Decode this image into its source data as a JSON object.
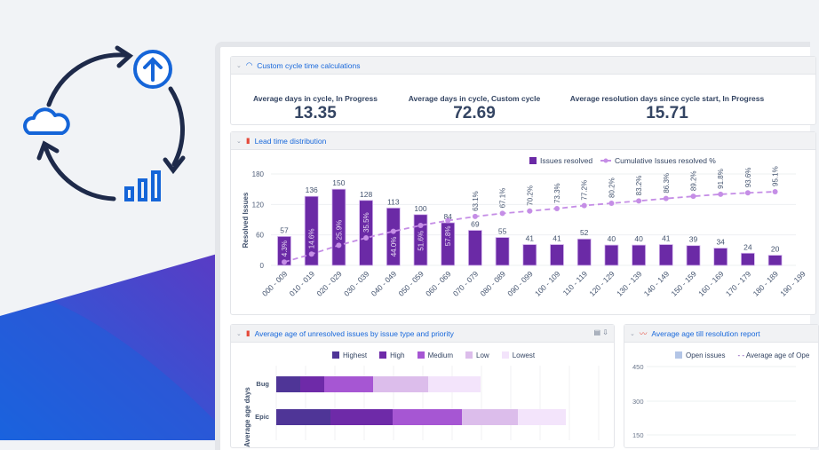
{
  "colors": {
    "brand_blue": "#1565d8",
    "navy": "#1e2a4a",
    "bar_purple": "#6b2aa6",
    "line_lilac": "#c58ee6"
  },
  "illustration": {
    "icons": [
      "cloud-icon",
      "upload-arrow-icon",
      "bar-chart-icon",
      "cycle-arrows-icon"
    ]
  },
  "cycle_card": {
    "title": "Custom cycle time calculations",
    "icon": "gauge-icon",
    "kpis": [
      {
        "label": "Average days in cycle, In Progress",
        "value": "13.35"
      },
      {
        "label": "Average days in cycle, Custom cycle",
        "value": "72.69"
      },
      {
        "label": "Average resolution days since cycle start, In Progress",
        "value": "15.71"
      }
    ]
  },
  "lead_card": {
    "title": "Lead time distribution",
    "icon": "bar-chart-icon"
  },
  "chart_data": [
    {
      "type": "bar",
      "ylabel": "Resolved Issues",
      "ylim": [
        0,
        180
      ],
      "yticks": [
        0,
        60,
        120,
        180
      ],
      "legend": [
        "Issues resolved",
        "Cumulative Issues resolved %"
      ],
      "legend_position": "top-right",
      "categories": [
        "000 - 009",
        "010 - 019",
        "020 - 029",
        "030 - 039",
        "040 - 049",
        "050 - 059",
        "060 - 069",
        "070 - 079",
        "080 - 089",
        "090 - 099",
        "100 - 109",
        "110 - 119",
        "120 - 129",
        "130 - 139",
        "140 - 149",
        "150 - 159",
        "160 - 169",
        "170 - 179",
        "180 - 189",
        "190 - 199"
      ],
      "series": [
        {
          "name": "Issues resolved",
          "type": "bar",
          "values": [
            57,
            136,
            150,
            128,
            113,
            100,
            84,
            69,
            55,
            41,
            41,
            52,
            40,
            40,
            41,
            39,
            34,
            24,
            20,
            null
          ]
        },
        {
          "name": "Cumulative Issues resolved %",
          "type": "line",
          "values": [
            4.3,
            14.6,
            25.9,
            35.5,
            44.0,
            51.6,
            57.8,
            63.1,
            67.1,
            70.2,
            73.3,
            77.2,
            80.2,
            83.2,
            86.3,
            89.2,
            91.8,
            93.6,
            95.1,
            null
          ]
        }
      ]
    },
    {
      "type": "bar",
      "orientation": "horizontal",
      "stacked": true,
      "ylabel": "Average age days",
      "legend": [
        "Highest",
        "High",
        "Medium",
        "Low",
        "Lowest"
      ],
      "legend_position": "top",
      "categories": [
        "Bug",
        "Epic"
      ],
      "series": [
        {
          "name": "Highest",
          "values": [
            27,
            61
          ]
        },
        {
          "name": "High",
          "values": [
            27,
            70
          ]
        },
        {
          "name": "Medium",
          "values": [
            55,
            78
          ]
        },
        {
          "name": "Low",
          "values": [
            62,
            63
          ]
        },
        {
          "name": "Lowest",
          "values": [
            59,
            54
          ]
        }
      ],
      "colors": [
        "#4f3597",
        "#6e2aa8",
        "#a656d3",
        "#dcbdeb",
        "#f3e4fb"
      ]
    },
    {
      "type": "line",
      "yticks": [
        150,
        300,
        450
      ],
      "legend": [
        "Open issues",
        "Average age of Ope"
      ],
      "legend_position": "top"
    }
  ],
  "age_card": {
    "title": "Average age of unresolved issues by issue type and priority",
    "icon": "bar-chart-icon",
    "tools": [
      "table-icon",
      "download-icon"
    ]
  },
  "res_card": {
    "title": "Average age till resolution report",
    "icon": "line-chart-icon"
  }
}
